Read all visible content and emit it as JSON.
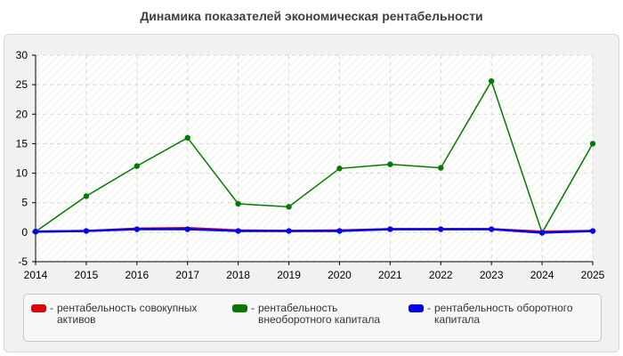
{
  "chart_data": {
    "type": "line",
    "title": "Динамика показателей экономическая рентабельности",
    "x": [
      "2014",
      "2015",
      "2016",
      "2017",
      "2018",
      "2019",
      "2020",
      "2021",
      "2022",
      "2023",
      "2024",
      "2025"
    ],
    "ylim": [
      -5,
      30
    ],
    "yticks": [
      "30",
      "25",
      "20",
      "15",
      "10",
      "5",
      "0",
      "-5"
    ],
    "ytick_values": [
      30,
      25,
      20,
      15,
      10,
      5,
      0,
      -5
    ],
    "grid": true,
    "legend_position": "bottom",
    "series": [
      {
        "name": "рентабельность совокупных активов",
        "color": "#e00000",
        "values": [
          0.1,
          0.2,
          0.6,
          0.7,
          0.3,
          0.2,
          0.3,
          0.5,
          0.5,
          0.5,
          0.1,
          0.2
        ]
      },
      {
        "name": "рентабельность внеоборотного капитала",
        "color": "#007a00",
        "values": [
          0.1,
          6.1,
          11.2,
          16.0,
          4.8,
          4.3,
          10.8,
          11.5,
          10.9,
          25.6,
          -0.1,
          15.0
        ]
      },
      {
        "name": "рентабельность оборотного капитала",
        "color": "#0000ee",
        "values": [
          0.1,
          0.2,
          0.5,
          0.5,
          0.2,
          0.2,
          0.2,
          0.5,
          0.5,
          0.5,
          -0.1,
          0.2
        ]
      }
    ]
  }
}
